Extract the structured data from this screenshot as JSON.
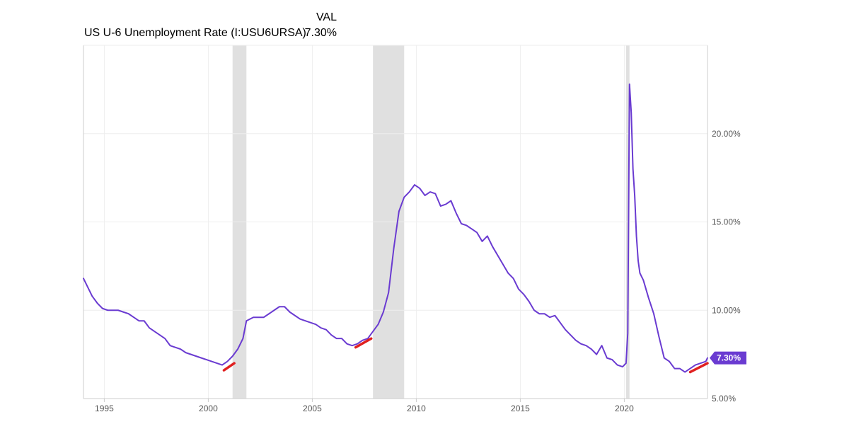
{
  "legend": {
    "column_header": "VAL",
    "series_name": "US U-6 Unemployment Rate (I:USU6URSA)",
    "series_value": "7.30%"
  },
  "colors": {
    "line": "#6a3bd1",
    "recession_band": "#e0e0e0",
    "trend_marker": "#e02020",
    "grid": "#eeeeee",
    "axis": "#cccccc",
    "end_label_bg": "#6a3bd1"
  },
  "chart_data": {
    "type": "line",
    "title": "",
    "xlabel": "",
    "ylabel": "",
    "x_range": [
      "1994-01",
      "2024-01"
    ],
    "ylim": [
      5,
      25
    ],
    "y_ticks": [
      5,
      10,
      15,
      20
    ],
    "y_tick_labels": [
      "5.00%",
      "10.00%",
      "15.00%",
      "20.00%"
    ],
    "y_axis_position": "right",
    "x_ticks": [
      "1995-01",
      "2000-01",
      "2005-01",
      "2010-01",
      "2015-01",
      "2020-01"
    ],
    "x_tick_labels": [
      "1995",
      "2000",
      "2005",
      "2010",
      "2015",
      "2020"
    ],
    "grid": true,
    "legend_position": "top-left",
    "end_label": "7.30%",
    "recessions": [
      {
        "start": "2001-03",
        "end": "2001-11"
      },
      {
        "start": "2007-12",
        "end": "2009-06"
      },
      {
        "start": "2020-02",
        "end": "2020-04"
      }
    ],
    "trend_markers": [
      {
        "start": "2000-10",
        "end": "2001-04",
        "y_start": 6.6,
        "y_end": 7.0
      },
      {
        "start": "2007-02",
        "end": "2007-11",
        "y_start": 7.9,
        "y_end": 8.4
      },
      {
        "start": "2023-03",
        "end": "2024-01",
        "y_start": 6.5,
        "y_end": 7.0
      }
    ],
    "series": [
      {
        "name": "US U-6 Unemployment Rate (I:USU6URSA)",
        "points": [
          [
            "1994-01",
            11.8
          ],
          [
            "1994-03",
            11.4
          ],
          [
            "1994-06",
            10.8
          ],
          [
            "1994-09",
            10.4
          ],
          [
            "1994-12",
            10.1
          ],
          [
            "1995-03",
            10.0
          ],
          [
            "1995-06",
            10.0
          ],
          [
            "1995-09",
            10.0
          ],
          [
            "1995-12",
            9.9
          ],
          [
            "1996-03",
            9.8
          ],
          [
            "1996-06",
            9.6
          ],
          [
            "1996-09",
            9.4
          ],
          [
            "1996-12",
            9.4
          ],
          [
            "1997-03",
            9.0
          ],
          [
            "1997-06",
            8.8
          ],
          [
            "1997-09",
            8.6
          ],
          [
            "1997-12",
            8.4
          ],
          [
            "1998-03",
            8.0
          ],
          [
            "1998-06",
            7.9
          ],
          [
            "1998-09",
            7.8
          ],
          [
            "1998-12",
            7.6
          ],
          [
            "1999-03",
            7.5
          ],
          [
            "1999-06",
            7.4
          ],
          [
            "1999-09",
            7.3
          ],
          [
            "1999-12",
            7.2
          ],
          [
            "2000-03",
            7.1
          ],
          [
            "2000-06",
            7.0
          ],
          [
            "2000-09",
            6.9
          ],
          [
            "2000-12",
            7.1
          ],
          [
            "2001-03",
            7.4
          ],
          [
            "2001-06",
            7.8
          ],
          [
            "2001-09",
            8.4
          ],
          [
            "2001-11",
            9.4
          ],
          [
            "2002-03",
            9.6
          ],
          [
            "2002-06",
            9.6
          ],
          [
            "2002-09",
            9.6
          ],
          [
            "2002-12",
            9.8
          ],
          [
            "2003-03",
            10.0
          ],
          [
            "2003-06",
            10.2
          ],
          [
            "2003-09",
            10.2
          ],
          [
            "2003-12",
            9.9
          ],
          [
            "2004-03",
            9.7
          ],
          [
            "2004-06",
            9.5
          ],
          [
            "2004-09",
            9.4
          ],
          [
            "2004-12",
            9.3
          ],
          [
            "2005-03",
            9.2
          ],
          [
            "2005-06",
            9.0
          ],
          [
            "2005-09",
            8.9
          ],
          [
            "2005-12",
            8.6
          ],
          [
            "2006-03",
            8.4
          ],
          [
            "2006-06",
            8.4
          ],
          [
            "2006-09",
            8.1
          ],
          [
            "2006-12",
            8.0
          ],
          [
            "2007-03",
            8.1
          ],
          [
            "2007-06",
            8.3
          ],
          [
            "2007-09",
            8.4
          ],
          [
            "2007-12",
            8.8
          ],
          [
            "2008-03",
            9.2
          ],
          [
            "2008-06",
            9.9
          ],
          [
            "2008-09",
            11.0
          ],
          [
            "2008-12",
            13.5
          ],
          [
            "2009-03",
            15.6
          ],
          [
            "2009-06",
            16.4
          ],
          [
            "2009-09",
            16.7
          ],
          [
            "2009-12",
            17.1
          ],
          [
            "2010-03",
            16.9
          ],
          [
            "2010-06",
            16.5
          ],
          [
            "2010-09",
            16.7
          ],
          [
            "2010-12",
            16.6
          ],
          [
            "2011-03",
            15.9
          ],
          [
            "2011-06",
            16.0
          ],
          [
            "2011-09",
            16.2
          ],
          [
            "2011-12",
            15.5
          ],
          [
            "2012-03",
            14.9
          ],
          [
            "2012-06",
            14.8
          ],
          [
            "2012-09",
            14.6
          ],
          [
            "2012-12",
            14.4
          ],
          [
            "2013-03",
            13.9
          ],
          [
            "2013-06",
            14.2
          ],
          [
            "2013-09",
            13.6
          ],
          [
            "2013-12",
            13.1
          ],
          [
            "2014-03",
            12.6
          ],
          [
            "2014-06",
            12.1
          ],
          [
            "2014-09",
            11.8
          ],
          [
            "2014-12",
            11.2
          ],
          [
            "2015-03",
            10.9
          ],
          [
            "2015-06",
            10.5
          ],
          [
            "2015-09",
            10.0
          ],
          [
            "2015-12",
            9.8
          ],
          [
            "2016-03",
            9.8
          ],
          [
            "2016-06",
            9.6
          ],
          [
            "2016-09",
            9.7
          ],
          [
            "2016-12",
            9.3
          ],
          [
            "2017-03",
            8.9
          ],
          [
            "2017-06",
            8.6
          ],
          [
            "2017-09",
            8.3
          ],
          [
            "2017-12",
            8.1
          ],
          [
            "2018-03",
            8.0
          ],
          [
            "2018-06",
            7.8
          ],
          [
            "2018-09",
            7.5
          ],
          [
            "2018-12",
            8.0
          ],
          [
            "2019-03",
            7.3
          ],
          [
            "2019-06",
            7.2
          ],
          [
            "2019-09",
            6.9
          ],
          [
            "2019-12",
            6.8
          ],
          [
            "2020-01",
            6.9
          ],
          [
            "2020-02",
            7.0
          ],
          [
            "2020-03",
            8.7
          ],
          [
            "2020-04",
            22.8
          ],
          [
            "2020-05",
            21.2
          ],
          [
            "2020-06",
            18.0
          ],
          [
            "2020-07",
            16.5
          ],
          [
            "2020-08",
            14.2
          ],
          [
            "2020-09",
            12.8
          ],
          [
            "2020-10",
            12.1
          ],
          [
            "2020-12",
            11.7
          ],
          [
            "2021-03",
            10.7
          ],
          [
            "2021-06",
            9.8
          ],
          [
            "2021-09",
            8.5
          ],
          [
            "2021-12",
            7.3
          ],
          [
            "2022-03",
            7.1
          ],
          [
            "2022-06",
            6.7
          ],
          [
            "2022-09",
            6.7
          ],
          [
            "2022-12",
            6.5
          ],
          [
            "2023-03",
            6.7
          ],
          [
            "2023-06",
            6.9
          ],
          [
            "2023-09",
            7.0
          ],
          [
            "2023-12",
            7.1
          ],
          [
            "2024-01",
            7.3
          ]
        ]
      }
    ]
  }
}
